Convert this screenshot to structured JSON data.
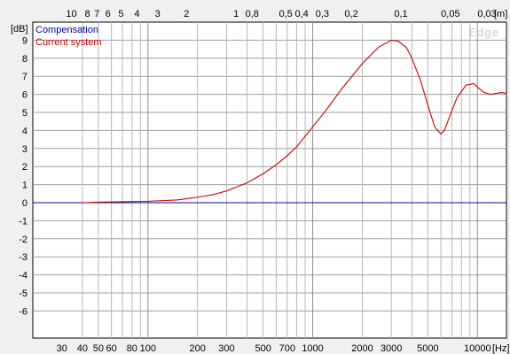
{
  "chart_data": {
    "type": "line",
    "watermark": "Edge",
    "x_unit_label": "[Hz]",
    "y_unit_label": "[dB]",
    "top_unit_label": "[m]",
    "xlim": [
      20,
      15000
    ],
    "ylim": [
      -7.5,
      10
    ],
    "x_scale": "log",
    "grid": true,
    "legend_position": "top-left",
    "x_ticks": [
      {
        "value": 30,
        "label": "30"
      },
      {
        "value": 40,
        "label": "40"
      },
      {
        "value": 50,
        "label": "50"
      },
      {
        "value": 60,
        "label": "60"
      },
      {
        "value": 80,
        "label": "80"
      },
      {
        "value": 100,
        "label": "100"
      },
      {
        "value": 200,
        "label": "200"
      },
      {
        "value": 300,
        "label": "300"
      },
      {
        "value": 500,
        "label": "500"
      },
      {
        "value": 700,
        "label": "700"
      },
      {
        "value": 1000,
        "label": "1000"
      },
      {
        "value": 2000,
        "label": "2000"
      },
      {
        "value": 3000,
        "label": "3000"
      },
      {
        "value": 5000,
        "label": "5000"
      },
      {
        "value": 10000,
        "label": "10000"
      }
    ],
    "x_grid": [
      40,
      50,
      60,
      70,
      80,
      90,
      100,
      200,
      300,
      400,
      500,
      600,
      700,
      800,
      900,
      1000,
      2000,
      3000,
      4000,
      5000,
      6000,
      7000,
      8000,
      9000,
      10000
    ],
    "x_grid_major": [
      100,
      1000,
      10000
    ],
    "top_ticks": [
      {
        "value": 10,
        "label": "10"
      },
      {
        "value": 8,
        "label": "8"
      },
      {
        "value": 7,
        "label": "7"
      },
      {
        "value": 6,
        "label": "6"
      },
      {
        "value": 5,
        "label": "5"
      },
      {
        "value": 4,
        "label": "4"
      },
      {
        "value": 3,
        "label": "3"
      },
      {
        "value": 2,
        "label": "2"
      },
      {
        "value": 1,
        "label": "1"
      },
      {
        "value": 0.8,
        "label": "0,8"
      },
      {
        "value": 0.5,
        "label": "0,5"
      },
      {
        "value": 0.4,
        "label": "0,4"
      },
      {
        "value": 0.3,
        "label": "0,3"
      },
      {
        "value": 0.2,
        "label": "0,2"
      },
      {
        "value": 0.1,
        "label": "0,1"
      },
      {
        "value": 0.05,
        "label": "0,05"
      },
      {
        "value": 0.03,
        "label": "0,03"
      }
    ],
    "y_ticks": [
      {
        "value": 9,
        "label": "9"
      },
      {
        "value": 8,
        "label": "8"
      },
      {
        "value": 7,
        "label": "7"
      },
      {
        "value": 6,
        "label": "6"
      },
      {
        "value": 5,
        "label": "5"
      },
      {
        "value": 4,
        "label": "4"
      },
      {
        "value": 3,
        "label": "3"
      },
      {
        "value": 2,
        "label": "2"
      },
      {
        "value": 1,
        "label": "1"
      },
      {
        "value": 0,
        "label": "0"
      },
      {
        "value": -1,
        "label": "-1"
      },
      {
        "value": -2,
        "label": "-2"
      },
      {
        "value": -3,
        "label": "-3"
      },
      {
        "value": -4,
        "label": "-4"
      },
      {
        "value": -5,
        "label": "-5"
      },
      {
        "value": -6,
        "label": "-6"
      }
    ],
    "series": [
      {
        "name": "Compensation",
        "color": "#0000aa",
        "x": [
          20,
          15000
        ],
        "y": [
          0,
          0
        ]
      },
      {
        "name": "Current system",
        "color": "#cc0000",
        "x": [
          40,
          50,
          70,
          100,
          150,
          200,
          250,
          300,
          400,
          500,
          600,
          700,
          800,
          1000,
          1200,
          1500,
          2000,
          2500,
          3000,
          3300,
          3700,
          4000,
          4500,
          5000,
          5500,
          6000,
          6300,
          6800,
          7500,
          8500,
          9500,
          10000,
          11000,
          12000,
          13000,
          14000,
          15000
        ],
        "y": [
          0.0,
          0.03,
          0.05,
          0.08,
          0.15,
          0.3,
          0.45,
          0.65,
          1.1,
          1.6,
          2.1,
          2.6,
          3.1,
          4.2,
          5.1,
          6.3,
          7.7,
          8.6,
          9.0,
          8.95,
          8.6,
          8.0,
          6.8,
          5.4,
          4.2,
          3.8,
          4.0,
          4.8,
          5.8,
          6.5,
          6.6,
          6.4,
          6.1,
          6.0,
          6.05,
          6.1,
          6.05
        ]
      }
    ]
  }
}
